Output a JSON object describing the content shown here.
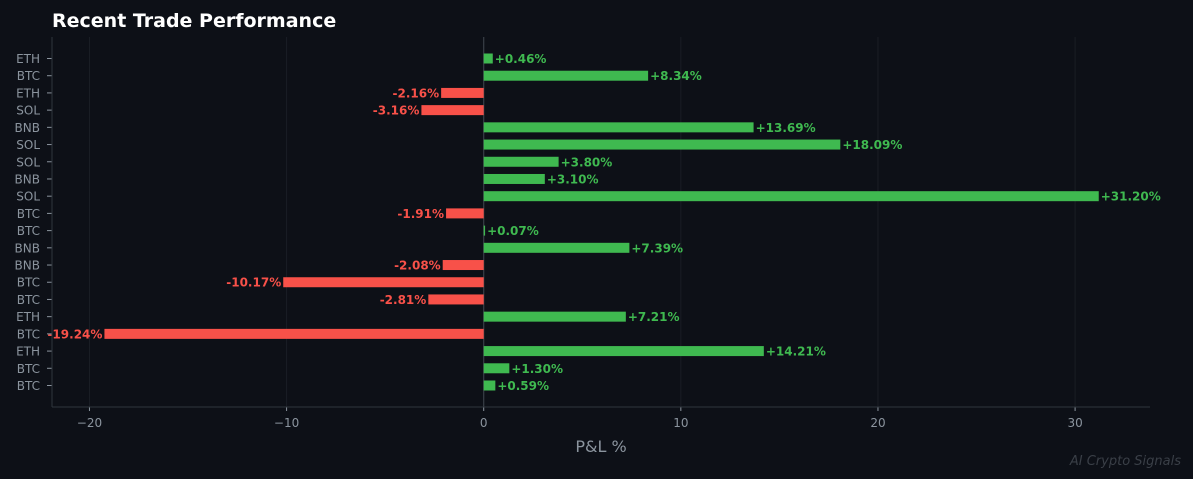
{
  "chart_data": {
    "type": "bar",
    "orientation": "horizontal",
    "title": "Recent Trade Performance",
    "xlabel": "P&L %",
    "ylabel": "",
    "xlim": [
      -21.9,
      33.8
    ],
    "xticks": [
      -20,
      -10,
      0,
      10,
      20,
      30
    ],
    "xtick_labels": [
      "−20",
      "−10",
      "0",
      "10",
      "20",
      "30"
    ],
    "grid": true,
    "categories": [
      "ETH",
      "BTC",
      "ETH",
      "SOL",
      "BNB",
      "SOL",
      "SOL",
      "BNB",
      "SOL",
      "BTC",
      "BTC",
      "BNB",
      "BNB",
      "BTC",
      "BTC",
      "ETH",
      "BTC",
      "ETH",
      "BTC",
      "BTC"
    ],
    "values": [
      0.46,
      8.34,
      -2.16,
      -3.16,
      13.69,
      18.09,
      3.8,
      3.1,
      31.2,
      -1.91,
      0.07,
      7.39,
      -2.08,
      -10.17,
      -2.81,
      7.21,
      -19.24,
      14.21,
      1.3,
      0.59
    ],
    "data_labels": [
      "+0.46%",
      "+8.34%",
      "-2.16%",
      "-3.16%",
      "+13.69%",
      "+18.09%",
      "+3.80%",
      "+3.10%",
      "+31.20%",
      "-1.91%",
      "+0.07%",
      "+7.39%",
      "-2.08%",
      "-10.17%",
      "-2.81%",
      "+7.21%",
      "-19.24%",
      "+14.21%",
      "+1.30%",
      "+0.59%"
    ],
    "colors": {
      "positive": "#3fb950",
      "negative": "#f85149",
      "background": "#0d1017",
      "text": "#8b949e",
      "title": "#ffffff"
    }
  },
  "watermark": "AI Crypto Signals"
}
